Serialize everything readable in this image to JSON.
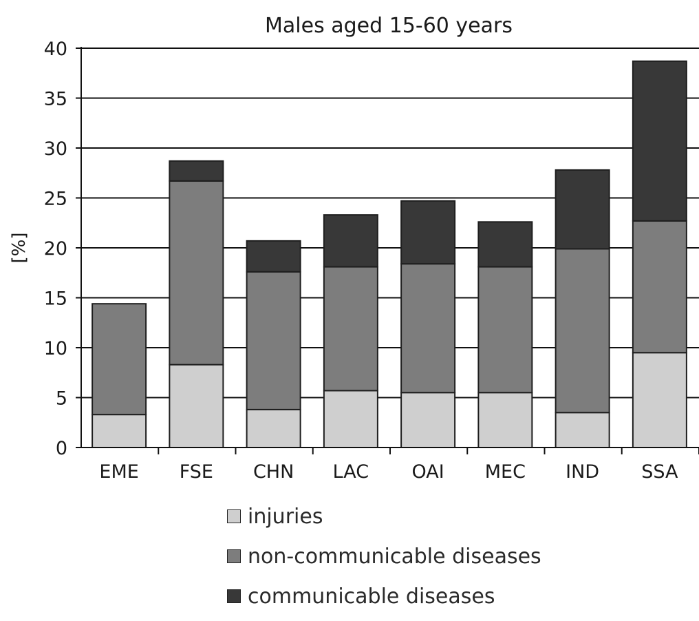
{
  "chart_data": {
    "type": "bar",
    "stacked": true,
    "title": "Males aged 15-60 years",
    "ylabel": "[%]",
    "xlabel": "",
    "ylim": [
      0,
      40
    ],
    "yticks": [
      0,
      5,
      10,
      15,
      20,
      25,
      30,
      35,
      40
    ],
    "grid": "horizontal",
    "legend_position": "bottom",
    "categories": [
      "EME",
      "FSE",
      "CHN",
      "LAC",
      "OAI",
      "MEC",
      "IND",
      "SSA"
    ],
    "series": [
      {
        "name": "injuries",
        "color": "#cfcfcf",
        "values": [
          3.3,
          8.3,
          3.8,
          5.7,
          5.5,
          5.5,
          3.5,
          9.5
        ]
      },
      {
        "name": "non-communicable diseases",
        "color": "#7d7d7d",
        "values": [
          11.1,
          18.4,
          13.8,
          12.4,
          12.9,
          12.6,
          16.4,
          13.2
        ]
      },
      {
        "name": "communicable diseases",
        "color": "#383838",
        "values": [
          0,
          2.0,
          3.1,
          5.2,
          6.3,
          4.5,
          7.9,
          16.0
        ]
      }
    ]
  }
}
